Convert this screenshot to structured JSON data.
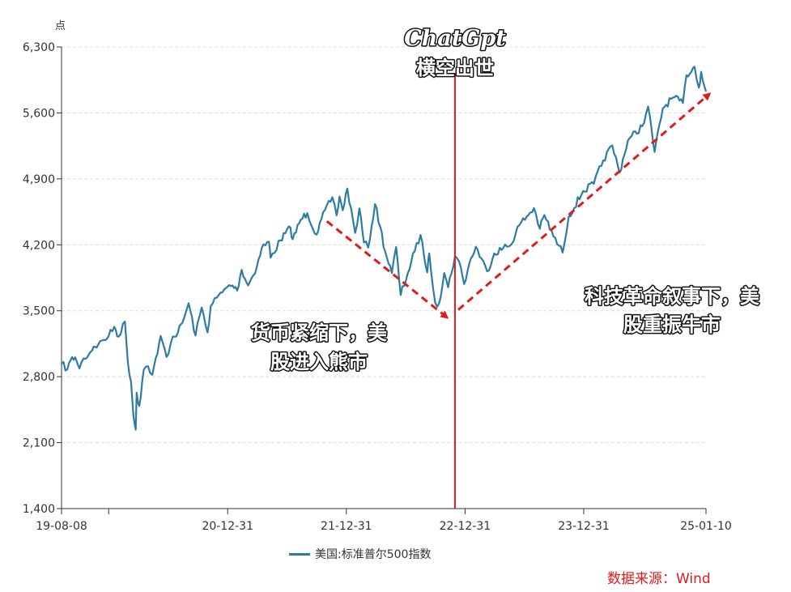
{
  "colors": {
    "series": "#2e7ca3",
    "grid": "#dcdcdc",
    "axis": "#333333",
    "event_line": "#e31a1c",
    "arrow": "#e31a1c",
    "source": "#e31a1c"
  },
  "source_label": "数据来源：Wind",
  "annotations": {
    "event_title": "ChatGpt",
    "event_subtitle": "横空出世",
    "left_line1": "货币紧缩下，美",
    "left_line2": "股进入熊市",
    "right_line1": "科技革命叙事下，美",
    "right_line2": "股重振牛市"
  },
  "chart_data": {
    "type": "line",
    "title": "",
    "xlabel": "",
    "ylabel": "点",
    "ylim": [
      1400,
      6300
    ],
    "yticks": [
      1400,
      2100,
      2800,
      3500,
      4200,
      4900,
      5600,
      6300
    ],
    "ytick_labels": [
      "1,400",
      "2,100",
      "2,800",
      "3,500",
      "4,200",
      "4,900",
      "5,600",
      "6,300"
    ],
    "xlim": [
      "2019-08-08",
      "2025-01-10"
    ],
    "xtick_labels": [
      "19-08-08",
      "20-12-31",
      "21-12-31",
      "22-12-31",
      "23-12-31",
      "25-01-10"
    ],
    "xtick_dates": [
      "2019-08-08",
      "2020-12-31",
      "2021-12-31",
      "2022-12-31",
      "2023-12-31",
      "2025-01-10"
    ],
    "extra_tick_dates": [
      "2019-12-31"
    ],
    "legend_position": "bottom",
    "grid": true,
    "event_date": "2022-11-30",
    "arrows": [
      {
        "from": [
          "2021-11-01",
          4450
        ],
        "to": [
          "2022-11-05",
          3430
        ]
      },
      {
        "from": [
          "2022-12-10",
          3510
        ],
        "to": [
          "2025-01-20",
          5800
        ]
      }
    ],
    "series": [
      {
        "name": "美国:标准普尔500指数",
        "points": [
          [
            "2019-08-08",
            2938
          ],
          [
            "2019-08-26",
            2878
          ],
          [
            "2019-09-05",
            2976
          ],
          [
            "2019-09-19",
            3006
          ],
          [
            "2019-10-02",
            2887
          ],
          [
            "2019-10-15",
            2995
          ],
          [
            "2019-10-31",
            3037
          ],
          [
            "2019-11-15",
            3120
          ],
          [
            "2019-11-29",
            3141
          ],
          [
            "2019-12-16",
            3191
          ],
          [
            "2019-12-31",
            3231
          ],
          [
            "2020-01-17",
            3330
          ],
          [
            "2020-01-31",
            3226
          ],
          [
            "2020-02-19",
            3386
          ],
          [
            "2020-02-28",
            2954
          ],
          [
            "2020-03-09",
            2746
          ],
          [
            "2020-03-16",
            2386
          ],
          [
            "2020-03-23",
            2237
          ],
          [
            "2020-03-26",
            2630
          ],
          [
            "2020-04-03",
            2489
          ],
          [
            "2020-04-17",
            2875
          ],
          [
            "2020-04-30",
            2912
          ],
          [
            "2020-05-13",
            2820
          ],
          [
            "2020-05-29",
            3044
          ],
          [
            "2020-06-08",
            3232
          ],
          [
            "2020-06-26",
            3009
          ],
          [
            "2020-07-15",
            3227
          ],
          [
            "2020-07-31",
            3271
          ],
          [
            "2020-08-14",
            3373
          ],
          [
            "2020-09-02",
            3580
          ],
          [
            "2020-09-23",
            3237
          ],
          [
            "2020-10-12",
            3534
          ],
          [
            "2020-10-30",
            3270
          ],
          [
            "2020-11-09",
            3550
          ],
          [
            "2020-11-27",
            3638
          ],
          [
            "2020-12-15",
            3695
          ],
          [
            "2020-12-31",
            3756
          ],
          [
            "2021-01-15",
            3768
          ],
          [
            "2021-01-29",
            3714
          ],
          [
            "2021-02-12",
            3934
          ],
          [
            "2021-03-04",
            3768
          ],
          [
            "2021-03-31",
            3973
          ],
          [
            "2021-04-15",
            4170
          ],
          [
            "2021-05-07",
            4233
          ],
          [
            "2021-05-12",
            4063
          ],
          [
            "2021-06-11",
            4247
          ],
          [
            "2021-07-12",
            4385
          ],
          [
            "2021-07-19",
            4258
          ],
          [
            "2021-08-13",
            4468
          ],
          [
            "2021-09-02",
            4537
          ],
          [
            "2021-09-30",
            4308
          ],
          [
            "2021-10-15",
            4471
          ],
          [
            "2021-11-18",
            4705
          ],
          [
            "2021-12-01",
            4513
          ],
          [
            "2021-12-10",
            4712
          ],
          [
            "2021-12-20",
            4568
          ],
          [
            "2022-01-03",
            4797
          ],
          [
            "2022-01-27",
            4326
          ],
          [
            "2022-02-09",
            4587
          ],
          [
            "2022-02-23",
            4225
          ],
          [
            "2022-03-08",
            4170
          ],
          [
            "2022-03-29",
            4632
          ],
          [
            "2022-04-14",
            4392
          ],
          [
            "2022-04-29",
            4132
          ],
          [
            "2022-05-20",
            3901
          ],
          [
            "2022-06-02",
            4177
          ],
          [
            "2022-06-16",
            3667
          ],
          [
            "2022-07-08",
            3899
          ],
          [
            "2022-07-29",
            4130
          ],
          [
            "2022-08-16",
            4305
          ],
          [
            "2022-09-06",
            3908
          ],
          [
            "2022-09-12",
            4110
          ],
          [
            "2022-09-30",
            3586
          ],
          [
            "2022-10-12",
            3577
          ],
          [
            "2022-10-28",
            3901
          ],
          [
            "2022-11-09",
            3749
          ],
          [
            "2022-11-30",
            4080
          ],
          [
            "2022-12-13",
            4019
          ],
          [
            "2022-12-28",
            3783
          ],
          [
            "2023-01-13",
            3999
          ],
          [
            "2023-02-02",
            4179
          ],
          [
            "2023-03-09",
            3918
          ],
          [
            "2023-03-31",
            4109
          ],
          [
            "2023-04-28",
            4169
          ],
          [
            "2023-05-19",
            4192
          ],
          [
            "2023-06-16",
            4410
          ],
          [
            "2023-07-31",
            4589
          ],
          [
            "2023-08-18",
            4370
          ],
          [
            "2023-09-01",
            4516
          ],
          [
            "2023-09-29",
            4288
          ],
          [
            "2023-10-27",
            4117
          ],
          [
            "2023-11-15",
            4502
          ],
          [
            "2023-12-29",
            4770
          ],
          [
            "2024-01-31",
            4846
          ],
          [
            "2024-02-29",
            5096
          ],
          [
            "2024-03-28",
            5254
          ],
          [
            "2024-04-19",
            4967
          ],
          [
            "2024-05-15",
            5308
          ],
          [
            "2024-06-28",
            5460
          ],
          [
            "2024-07-16",
            5667
          ],
          [
            "2024-08-05",
            5186
          ],
          [
            "2024-08-30",
            5648
          ],
          [
            "2024-09-30",
            5762
          ],
          [
            "2024-10-31",
            5705
          ],
          [
            "2024-11-11",
            6001
          ],
          [
            "2024-12-06",
            6090
          ],
          [
            "2024-12-19",
            5867
          ],
          [
            "2024-12-26",
            6037
          ],
          [
            "2025-01-10",
            5827
          ]
        ]
      }
    ]
  }
}
